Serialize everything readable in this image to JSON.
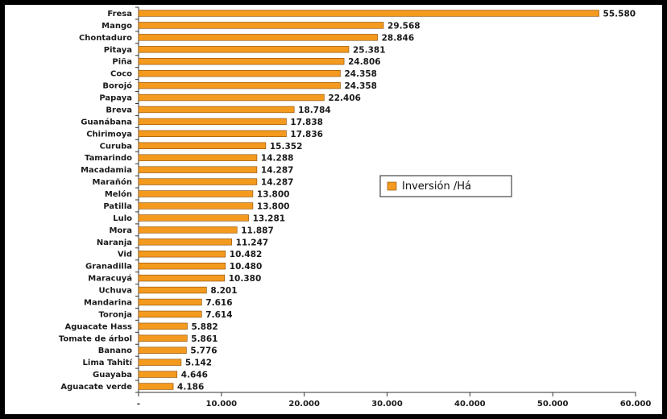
{
  "chart_data": {
    "type": "bar",
    "orientation": "horizontal",
    "categories": [
      "Fresa",
      "Mango",
      "Chontaduro",
      "Pitaya",
      "Piña",
      "Coco",
      "Borojó",
      "Papaya",
      "Breva",
      "Guanábana",
      "Chirimoya",
      "Curuba",
      "Tamarindo",
      "Macadamia",
      "Marañón",
      "Melón",
      "Patilla",
      "Lulo",
      "Mora",
      "Naranja",
      "Vid",
      "Granadilla",
      "Maracuyá",
      "Uchuva",
      "Mandarina",
      "Toronja",
      "Aguacate Hass",
      "Tomate de árbol",
      "Banano",
      "Lima Tahití",
      "Guayaba",
      "Aguacate verde"
    ],
    "series": [
      {
        "name": "Inversión /Há",
        "color": "#F39A1F",
        "values": [
          55580,
          29568,
          28846,
          25381,
          24806,
          24358,
          24358,
          22406,
          18784,
          17838,
          17836,
          15352,
          14288,
          14287,
          14287,
          13800,
          13800,
          13281,
          11887,
          11247,
          10482,
          10480,
          10380,
          8201,
          7616,
          7614,
          5882,
          5861,
          5776,
          5142,
          4646,
          4186
        ],
        "value_labels": [
          "55.580",
          "29.568",
          "28.846",
          "25.381",
          "24.806",
          "24.358",
          "24.358",
          "22.406",
          "18.784",
          "17.838",
          "17.836",
          "15.352",
          "14.288",
          "14.287",
          "14.287",
          "13.800",
          "13.800",
          "13.281",
          "11.887",
          "11.247",
          "10.482",
          "10.480",
          "10.380",
          "8.201",
          "7.616",
          "7.614",
          "5.882",
          "5.861",
          "5.776",
          "5.142",
          "4.646",
          "4.186"
        ]
      }
    ],
    "x_ticks": [
      0,
      10000,
      20000,
      30000,
      40000,
      50000,
      60000
    ],
    "x_tick_labels": [
      "-",
      "10.000",
      "20.000",
      "30.000",
      "40.000",
      "50.000",
      "60.000"
    ],
    "xlim": [
      0,
      60000
    ],
    "legend": {
      "label": "Inversión /Há",
      "position": "center-right"
    },
    "grid": false,
    "title": "",
    "xlabel": "",
    "ylabel": ""
  }
}
